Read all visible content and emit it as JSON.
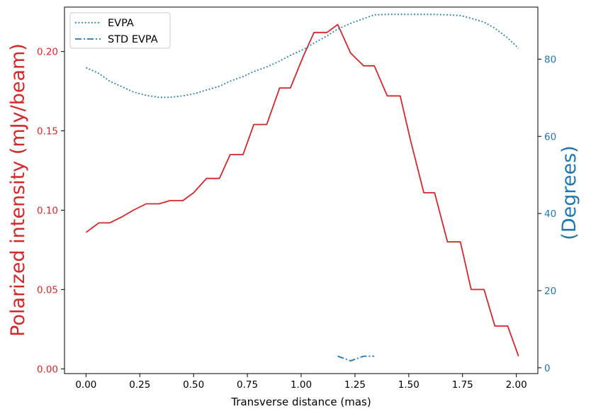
{
  "chart_data": {
    "type": "line",
    "xlabel": "Transverse distance (mas)",
    "ylabel_left": "Polarized intensity (mJy/beam)",
    "ylabel_right": "(Degrees)",
    "xlim": [
      -0.1,
      2.1
    ],
    "ylim_left": [
      -0.003,
      0.228
    ],
    "ylim_right": [
      -1.5,
      93.5
    ],
    "x_ticks": [
      0.0,
      0.25,
      0.5,
      0.75,
      1.0,
      1.25,
      1.5,
      1.75,
      2.0
    ],
    "x_tick_labels": [
      "0.00",
      "0.25",
      "0.50",
      "0.75",
      "1.00",
      "1.25",
      "1.50",
      "1.75",
      "2.00"
    ],
    "y_left_ticks": [
      0.0,
      0.05,
      0.1,
      0.15,
      0.2
    ],
    "y_left_tick_labels": [
      "0.00",
      "0.05",
      "0.10",
      "0.15",
      "0.20"
    ],
    "y_right_ticks": [
      0,
      20,
      40,
      60,
      80
    ],
    "y_right_tick_labels": [
      "0",
      "20",
      "40",
      "60",
      "80"
    ],
    "legend_position": "upper-left",
    "grid": false,
    "series": [
      {
        "key": "polarized",
        "axis": "left",
        "color": "#d62728",
        "style": "solid",
        "x": [
          0.0,
          0.06,
          0.11,
          0.17,
          0.22,
          0.28,
          0.34,
          0.39,
          0.45,
          0.5,
          0.56,
          0.62,
          0.67,
          0.73,
          0.78,
          0.84,
          0.9,
          0.95,
          1.01,
          1.06,
          1.12,
          1.17,
          1.23,
          1.29,
          1.34,
          1.4,
          1.46,
          1.51,
          1.57,
          1.62,
          1.68,
          1.74,
          1.79,
          1.85,
          1.9,
          1.96,
          2.01
        ],
        "values": [
          0.086,
          0.092,
          0.092,
          0.096,
          0.1,
          0.104,
          0.104,
          0.106,
          0.106,
          0.111,
          0.12,
          0.12,
          0.135,
          0.135,
          0.154,
          0.154,
          0.177,
          0.177,
          0.197,
          0.212,
          0.212,
          0.217,
          0.199,
          0.191,
          0.191,
          0.172,
          0.172,
          0.143,
          0.111,
          0.111,
          0.08,
          0.08,
          0.05,
          0.05,
          0.027,
          0.027,
          0.008
        ]
      },
      {
        "key": "evpa",
        "name": "EVPA",
        "axis": "right",
        "color": "#1f77b4",
        "style": "dotted",
        "x": [
          0.0,
          0.06,
          0.11,
          0.17,
          0.22,
          0.28,
          0.34,
          0.39,
          0.45,
          0.5,
          0.56,
          0.62,
          0.67,
          0.73,
          0.78,
          0.84,
          0.9,
          0.95,
          1.01,
          1.06,
          1.12,
          1.17,
          1.23,
          1.29,
          1.34,
          1.4,
          1.46,
          1.51,
          1.57,
          1.62,
          1.68,
          1.74,
          1.79,
          1.85,
          1.9,
          1.96,
          2.01
        ],
        "values": [
          77.8,
          76.3,
          74.3,
          72.8,
          71.5,
          70.6,
          70.1,
          70.1,
          70.5,
          71.0,
          72.0,
          73.0,
          74.3,
          75.5,
          76.8,
          78.0,
          79.5,
          81.0,
          82.5,
          84.2,
          86.0,
          87.8,
          89.3,
          90.5,
          91.5,
          91.6,
          91.6,
          91.6,
          91.6,
          91.6,
          91.5,
          91.3,
          90.6,
          89.6,
          88.0,
          85.5,
          82.8
        ]
      },
      {
        "key": "std_evpa",
        "name": "STD EVPA",
        "axis": "right",
        "color": "#1f77b4",
        "style": "dashdot",
        "x": [
          1.17,
          1.23,
          1.29,
          1.34
        ],
        "values": [
          3.0,
          1.8,
          3.0,
          3.0
        ]
      }
    ]
  }
}
